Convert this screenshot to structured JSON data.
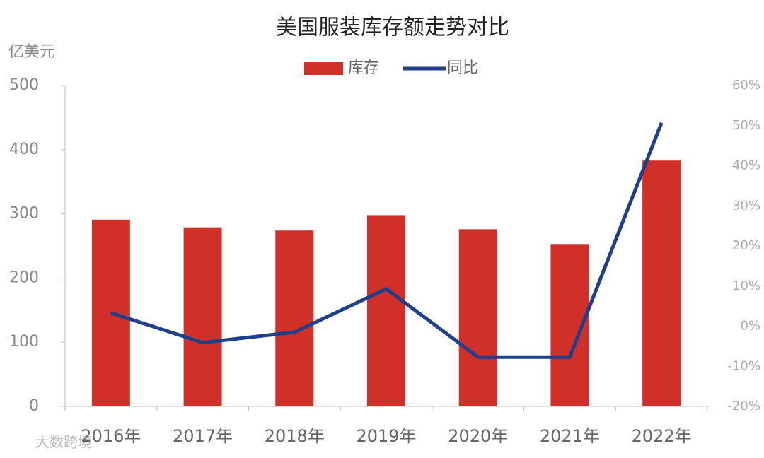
{
  "chart_data": {
    "type": "bar",
    "title": "美国服装库存额走势对比",
    "y_label": "亿美元",
    "watermark": "大数跨境",
    "categories": [
      "2016年",
      "2017年",
      "2018年",
      "2019年",
      "2020年",
      "2021年",
      "2022年"
    ],
    "series": [
      {
        "name": "库存",
        "type": "bar",
        "color": "#d03027",
        "values": [
          291,
          279,
          274,
          298,
          276,
          253,
          383
        ]
      },
      {
        "name": "同比",
        "type": "line",
        "axis": "y2",
        "color": "#1f3f8a",
        "values": [
          3.3,
          -4.1,
          -1.5,
          9.3,
          -7.7,
          -7.7,
          50.7
        ]
      }
    ],
    "ylim": [
      0,
      500
    ],
    "yticks": [
      0,
      100,
      200,
      300,
      400,
      500
    ],
    "y2lim": [
      -20,
      60
    ],
    "y2ticks": [
      {
        "value": -20,
        "label": "-20%"
      },
      {
        "value": -10,
        "label": "-10%"
      },
      {
        "value": 0,
        "label": "0%"
      },
      {
        "value": 10,
        "label": "10%"
      },
      {
        "value": 20,
        "label": "20%"
      },
      {
        "value": 30,
        "label": "30%"
      },
      {
        "value": 40,
        "label": "40%"
      },
      {
        "value": 50,
        "label": "50%"
      },
      {
        "value": 60,
        "label": "60%"
      }
    ],
    "legend": "top"
  }
}
